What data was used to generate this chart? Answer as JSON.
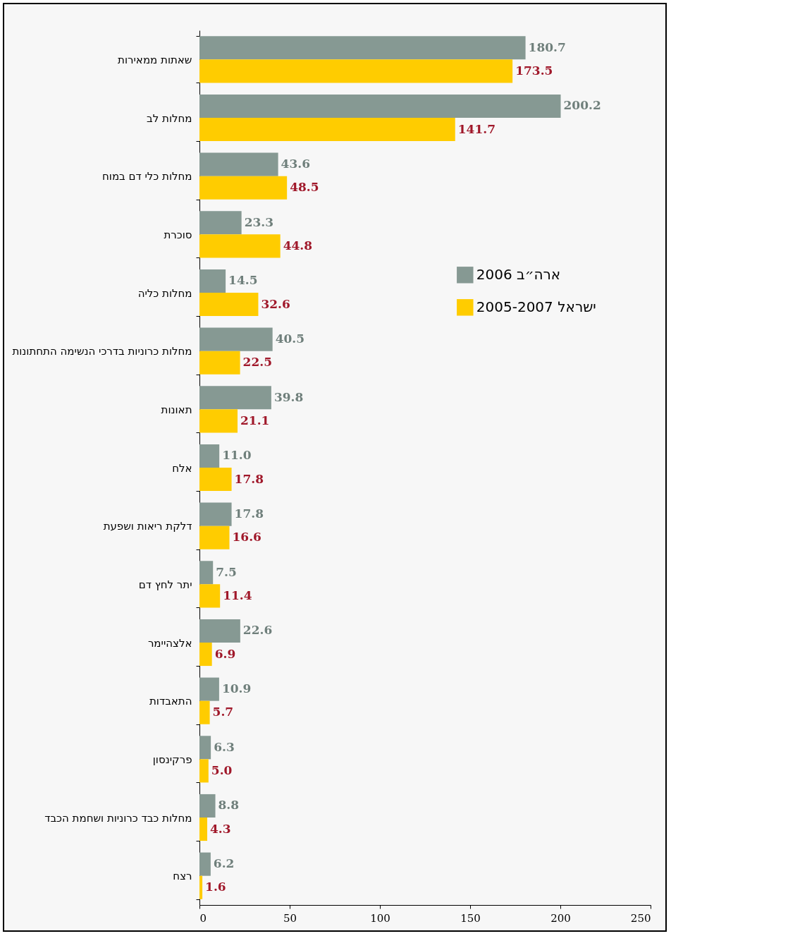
{
  "chart_data": {
    "type": "bar",
    "orientation": "horizontal",
    "categories": [
      "שאתות ממאירות",
      "מחלות לב",
      "מחלות כלי דם במוח",
      "סוכרת",
      "מחלות כליה",
      "מחלות כרוניות בדרכי הנשימה התחתונות",
      "תאונות",
      "אלח",
      "דלקת ריאות ושפעת",
      "יתר לחץ דם",
      "אלצהיימר",
      "התאבדות",
      "פרקינסון",
      "מחלות כבד כרוניות ושחמת הכבד",
      "רצח"
    ],
    "series": [
      {
        "name": "ארה״ב 2006",
        "color": "#869993",
        "values": [
          180.7,
          200.2,
          43.6,
          23.3,
          14.5,
          40.5,
          39.8,
          11.0,
          17.8,
          7.5,
          22.6,
          10.9,
          6.3,
          8.8,
          6.2
        ],
        "value_labels": [
          "180.7",
          "200.2",
          "43.6",
          "23.3",
          "14.5",
          "40.5",
          "39.8",
          "11.0",
          "17.8",
          "7.5",
          "22.6",
          "10.9",
          "6.3",
          "8.8",
          "6.2"
        ]
      },
      {
        "name": "ישראל 2005-2007",
        "color": "#ffcc00",
        "values": [
          173.5,
          141.7,
          48.5,
          44.8,
          32.6,
          22.5,
          21.1,
          17.8,
          16.6,
          11.4,
          6.9,
          5.7,
          5.0,
          4.3,
          1.6
        ],
        "value_labels": [
          "173.5",
          "141.7",
          "48.5",
          "44.8",
          "32.6",
          "22.5",
          "21.1",
          "17.8",
          "16.6",
          "11.4",
          "6.9",
          "5.7",
          "5.0",
          "4.3",
          "1.6"
        ]
      }
    ],
    "xlim": [
      0,
      250
    ],
    "xticks": [
      0,
      50,
      100,
      150,
      200,
      250
    ],
    "legend": "right",
    "grid": false
  }
}
